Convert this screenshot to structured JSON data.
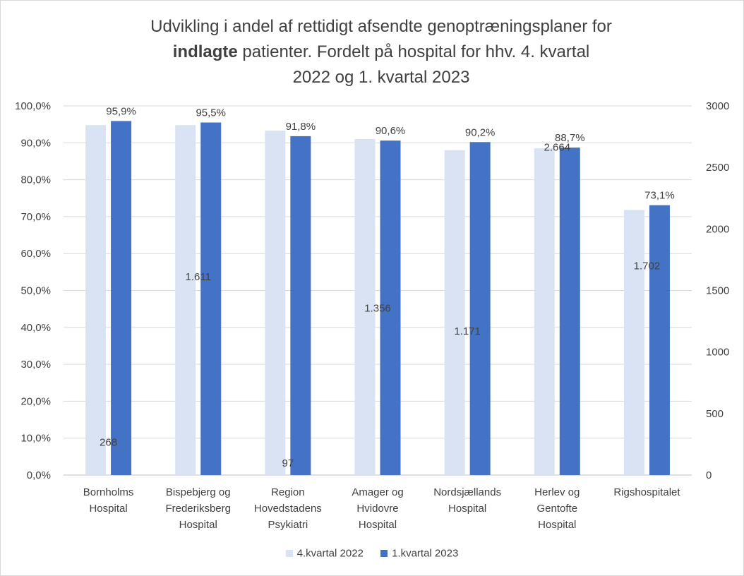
{
  "chart_data": {
    "type": "bar",
    "title_parts": {
      "line1": "Udvikling i andel af rettidigt afsendte genoptræningsplaner for",
      "line2_bold": "indlagte",
      "line2_rest": " patienter. Fordelt på hospital for hhv. 4. kvartal",
      "line3": "2022 og 1. kvartal 2023"
    },
    "categories": [
      [
        "Bornholms",
        "Hospital"
      ],
      [
        "Bispebjerg og",
        "Frederiksberg",
        "Hospital"
      ],
      [
        "Region",
        "Hovedstadens",
        "Psykiatri"
      ],
      [
        "Amager og",
        "Hvidovre",
        "Hospital"
      ],
      [
        "Nordsjællands",
        "Hospital"
      ],
      [
        "Herlev og",
        "Gentofte",
        "Hospital"
      ],
      [
        "Rigshospitalet"
      ]
    ],
    "series": [
      {
        "name": "4.kvartal 2022",
        "color": "#dae3f3",
        "values": [
          94.8,
          94.8,
          93.3,
          91.0,
          88.0,
          88.5,
          71.8
        ]
      },
      {
        "name": "1.kvartal 2023",
        "color": "#4472c4",
        "values": [
          95.9,
          95.5,
          91.8,
          90.6,
          90.2,
          88.7,
          73.1
        ],
        "labels": [
          "95,9%",
          "95,5%",
          "91,8%",
          "90,6%",
          "90,2%",
          "88,7%",
          "73,1%"
        ]
      }
    ],
    "count_labels": [
      {
        "category": 0,
        "text": "268",
        "value": 268
      },
      {
        "category": 1,
        "text": "1.611",
        "value": 1611
      },
      {
        "category": 2,
        "text": "97",
        "value": 97
      },
      {
        "category": 3,
        "text": "1.356",
        "value": 1356
      },
      {
        "category": 4,
        "text": "1.171",
        "value": 1171
      },
      {
        "category": 5,
        "text": "2.664",
        "value": 2664
      },
      {
        "category": 6,
        "text": "1.702",
        "value": 1702
      }
    ],
    "y_left": {
      "min": 0,
      "max": 100,
      "ticks": [
        "0,0%",
        "10,0%",
        "20,0%",
        "30,0%",
        "40,0%",
        "50,0%",
        "60,0%",
        "70,0%",
        "80,0%",
        "90,0%",
        "100,0%"
      ]
    },
    "y_right": {
      "min": 0,
      "max": 3000,
      "ticks": [
        "0",
        "500",
        "1000",
        "1500",
        "2000",
        "2500",
        "3000"
      ]
    },
    "grid": true,
    "legend_position": "bottom"
  }
}
